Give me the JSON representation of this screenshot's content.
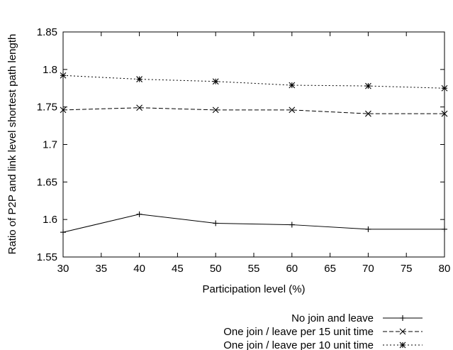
{
  "chart_data": {
    "type": "line",
    "title": "",
    "xlabel": "Participation level (%)",
    "ylabel": "Ratio of P2P and link level shortest path length",
    "xlim": [
      30,
      80
    ],
    "ylim": [
      1.55,
      1.85
    ],
    "xticks": [
      30,
      35,
      40,
      45,
      50,
      55,
      60,
      65,
      70,
      75,
      80
    ],
    "yticks": [
      "1.55",
      "1.6",
      "1.65",
      "1.7",
      "1.75",
      "1.8",
      "1.85"
    ],
    "grid": false,
    "legend_position": "bottom-right, below plot",
    "series": [
      {
        "name": "No join and leave",
        "marker": "plus",
        "line": "solid",
        "x": [
          30,
          40,
          50,
          60,
          70,
          80
        ],
        "y": [
          1.583,
          1.607,
          1.595,
          1.593,
          1.587,
          1.587
        ]
      },
      {
        "name": "One join / leave per 15 unit time",
        "marker": "cross",
        "line": "dashed",
        "x": [
          30,
          40,
          50,
          60,
          70,
          80
        ],
        "y": [
          1.746,
          1.749,
          1.746,
          1.746,
          1.741,
          1.741
        ]
      },
      {
        "name": "One join / leave per 10 unit time",
        "marker": "star",
        "line": "dotted",
        "x": [
          30,
          40,
          50,
          60,
          70,
          80
        ],
        "y": [
          1.792,
          1.787,
          1.784,
          1.779,
          1.778,
          1.775
        ]
      }
    ]
  }
}
